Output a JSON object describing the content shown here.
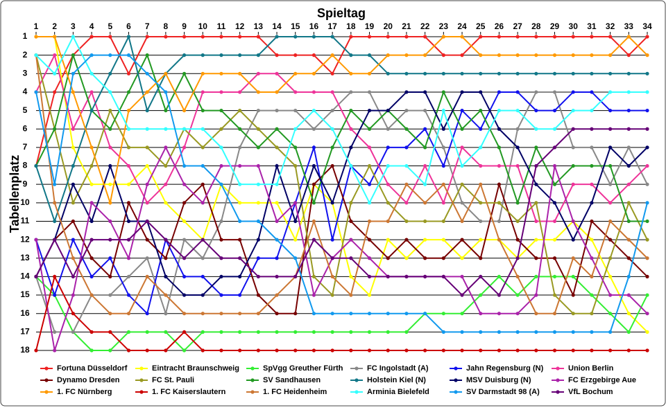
{
  "chart_data": {
    "type": "line",
    "xlabel": "Spieltag",
    "ylabel": "Tabellenplatz",
    "x": [
      1,
      2,
      3,
      4,
      5,
      6,
      7,
      8,
      9,
      10,
      11,
      12,
      13,
      14,
      15,
      16,
      17,
      18,
      19,
      20,
      21,
      22,
      23,
      24,
      25,
      26,
      27,
      28,
      29,
      30,
      31,
      32,
      33,
      34
    ],
    "xlim": [
      1,
      34
    ],
    "xticks": [
      1,
      2,
      3,
      4,
      5,
      6,
      7,
      8,
      9,
      10,
      11,
      12,
      13,
      14,
      15,
      16,
      17,
      18,
      19,
      20,
      21,
      22,
      23,
      24,
      25,
      26,
      27,
      28,
      29,
      30,
      31,
      32,
      33,
      34
    ],
    "ylim": [
      18,
      1
    ],
    "yticks": [
      1,
      2,
      3,
      4,
      5,
      6,
      7,
      8,
      9,
      10,
      11,
      12,
      13,
      14,
      15,
      16,
      17,
      18
    ],
    "grid": true,
    "legend": "bottom",
    "markers": true,
    "series": [
      {
        "name": "Fortuna Düsseldorf",
        "color": "#ee2222",
        "values": [
          8,
          4,
          2,
          1,
          1,
          3,
          1,
          1,
          1,
          1,
          1,
          1,
          1,
          2,
          2,
          2,
          3,
          1,
          1,
          1,
          1,
          1,
          2,
          2,
          1,
          1,
          1,
          1,
          1,
          1,
          1,
          1,
          2,
          1
        ]
      },
      {
        "name": "Eintracht Braunschweig",
        "color": "#ffff00",
        "values": [
          1,
          1,
          7,
          9,
          9,
          9,
          8,
          10,
          11,
          12,
          9,
          10,
          10,
          10,
          12,
          9,
          10,
          14,
          15,
          12,
          13,
          12,
          12,
          13,
          12,
          12,
          13,
          12,
          12,
          11,
          12,
          14,
          16,
          17
        ]
      },
      {
        "name": "SpVgg Greuther Fürth",
        "color": "#33ee33",
        "values": [
          14,
          15,
          17,
          18,
          18,
          17,
          17,
          17,
          18,
          17,
          17,
          17,
          17,
          17,
          17,
          17,
          17,
          17,
          17,
          17,
          17,
          16,
          16,
          16,
          15,
          14,
          15,
          14,
          14,
          14,
          15,
          16,
          17,
          15
        ]
      },
      {
        "name": "FC Ingolstadt (A)",
        "color": "#888888",
        "values": [
          14,
          17,
          17,
          15,
          15,
          14,
          13,
          16,
          12,
          13,
          11,
          7,
          5,
          5,
          5,
          6,
          5,
          4,
          4,
          6,
          5,
          5,
          7,
          10,
          11,
          11,
          6,
          4,
          4,
          7,
          7,
          9,
          7,
          9
        ]
      },
      {
        "name": "Jahn Regensburg (N)",
        "color": "#1111ee",
        "values": [
          12,
          15,
          12,
          14,
          13,
          15,
          16,
          12,
          14,
          14,
          15,
          15,
          13,
          13,
          10,
          7,
          12,
          8,
          9,
          7,
          7,
          6,
          8,
          5,
          6,
          4,
          4,
          5,
          5,
          4,
          4,
          5,
          5,
          5
        ]
      },
      {
        "name": "Union Berlin",
        "color": "#ee3399",
        "values": [
          4,
          2,
          6,
          4,
          7,
          8,
          10,
          9,
          7,
          4,
          4,
          4,
          3,
          3,
          4,
          4,
          4,
          6,
          7,
          9,
          10,
          8,
          10,
          7,
          8,
          8,
          8,
          11,
          11,
          9,
          9,
          10,
          9,
          8
        ]
      },
      {
        "name": "Dynamo Dresden",
        "color": "#770000",
        "values": [
          14,
          12,
          11,
          13,
          14,
          10,
          12,
          13,
          10,
          9,
          12,
          12,
          15,
          16,
          16,
          9,
          8,
          11,
          12,
          13,
          12,
          13,
          13,
          12,
          13,
          9,
          12,
          13,
          13,
          15,
          11,
          12,
          13,
          14
        ]
      },
      {
        "name": "FC St. Pauli",
        "color": "#999922",
        "values": [
          2,
          6,
          10,
          8,
          5,
          7,
          7,
          8,
          6,
          7,
          6,
          5,
          6,
          7,
          8,
          14,
          15,
          10,
          8,
          10,
          11,
          11,
          11,
          9,
          10,
          10,
          11,
          10,
          15,
          16,
          16,
          13,
          10,
          12
        ]
      },
      {
        "name": "SV Sandhausen",
        "color": "#229922",
        "values": [
          8,
          6,
          2,
          5,
          6,
          4,
          2,
          5,
          3,
          5,
          5,
          6,
          7,
          6,
          7,
          10,
          7,
          5,
          6,
          5,
          6,
          7,
          4,
          6,
          5,
          7,
          10,
          7,
          9,
          8,
          8,
          8,
          11,
          11
        ]
      },
      {
        "name": "Holstein Kiel (N)",
        "color": "#117788",
        "values": [
          8,
          11,
          8,
          5,
          3,
          1,
          5,
          3,
          2,
          2,
          2,
          2,
          2,
          1,
          1,
          1,
          1,
          2,
          2,
          3,
          3,
          3,
          3,
          3,
          3,
          3,
          3,
          3,
          3,
          3,
          3,
          3,
          3,
          3
        ]
      },
      {
        "name": "MSV Duisburg (N)",
        "color": "#000066",
        "values": [
          14,
          12,
          9,
          11,
          8,
          11,
          11,
          14,
          15,
          15,
          14,
          14,
          12,
          8,
          11,
          8,
          10,
          7,
          5,
          5,
          4,
          4,
          6,
          4,
          4,
          6,
          7,
          9,
          10,
          12,
          10,
          7,
          8,
          7
        ]
      },
      {
        "name": "FC Erzgebirge Aue",
        "color": "#aa22aa",
        "values": [
          12,
          18,
          15,
          10,
          11,
          13,
          9,
          7,
          9,
          10,
          8,
          8,
          8,
          11,
          10,
          15,
          13,
          12,
          13,
          14,
          14,
          14,
          14,
          14,
          16,
          16,
          16,
          15,
          8,
          11,
          13,
          15,
          15,
          16
        ]
      },
      {
        "name": "1. FC Nürnberg",
        "color": "#ff9900",
        "values": [
          1,
          1,
          4,
          7,
          10,
          5,
          4,
          3,
          5,
          3,
          3,
          3,
          4,
          4,
          3,
          3,
          2,
          3,
          3,
          2,
          2,
          2,
          1,
          1,
          2,
          2,
          2,
          2,
          2,
          2,
          2,
          2,
          1,
          2
        ]
      },
      {
        "name": "1. FC Kaiserslautern",
        "color": "#cc0000",
        "values": [
          18,
          14,
          16,
          17,
          17,
          18,
          18,
          18,
          17,
          18,
          18,
          18,
          18,
          18,
          18,
          18,
          18,
          18,
          18,
          18,
          18,
          18,
          18,
          18,
          18,
          18,
          18,
          18,
          18,
          18,
          18,
          18,
          18,
          18
        ]
      },
      {
        "name": "1. FC Heidenheim",
        "color": "#cc7733",
        "values": [
          2,
          10,
          13,
          15,
          16,
          16,
          14,
          15,
          16,
          16,
          16,
          16,
          16,
          15,
          14,
          11,
          14,
          15,
          11,
          11,
          9,
          10,
          9,
          11,
          9,
          12,
          14,
          16,
          16,
          13,
          14,
          11,
          12,
          13
        ]
      },
      {
        "name": "Arminia Bielefeld",
        "color": "#33ffff",
        "values": [
          2,
          3,
          1,
          3,
          4,
          6,
          6,
          6,
          6,
          6,
          7,
          9,
          9,
          9,
          6,
          5,
          6,
          8,
          10,
          8,
          8,
          9,
          5,
          8,
          7,
          5,
          5,
          6,
          6,
          5,
          5,
          4,
          4,
          4
        ]
      },
      {
        "name": "SV Darmstadt 98 (A)",
        "color": "#1199ee",
        "values": [
          4,
          9,
          3,
          2,
          2,
          2,
          3,
          4,
          8,
          8,
          9,
          11,
          11,
          12,
          13,
          16,
          16,
          16,
          16,
          16,
          16,
          16,
          17,
          17,
          17,
          17,
          17,
          17,
          17,
          17,
          17,
          17,
          14,
          10
        ]
      },
      {
        "name": "VfL Bochum",
        "color": "#660077",
        "values": [
          14,
          12,
          14,
          12,
          12,
          12,
          11,
          12,
          13,
          12,
          13,
          13,
          14,
          14,
          14,
          12,
          13,
          13,
          14,
          14,
          14,
          14,
          14,
          15,
          14,
          15,
          13,
          8,
          7,
          6,
          6,
          6,
          6,
          6
        ]
      }
    ]
  }
}
